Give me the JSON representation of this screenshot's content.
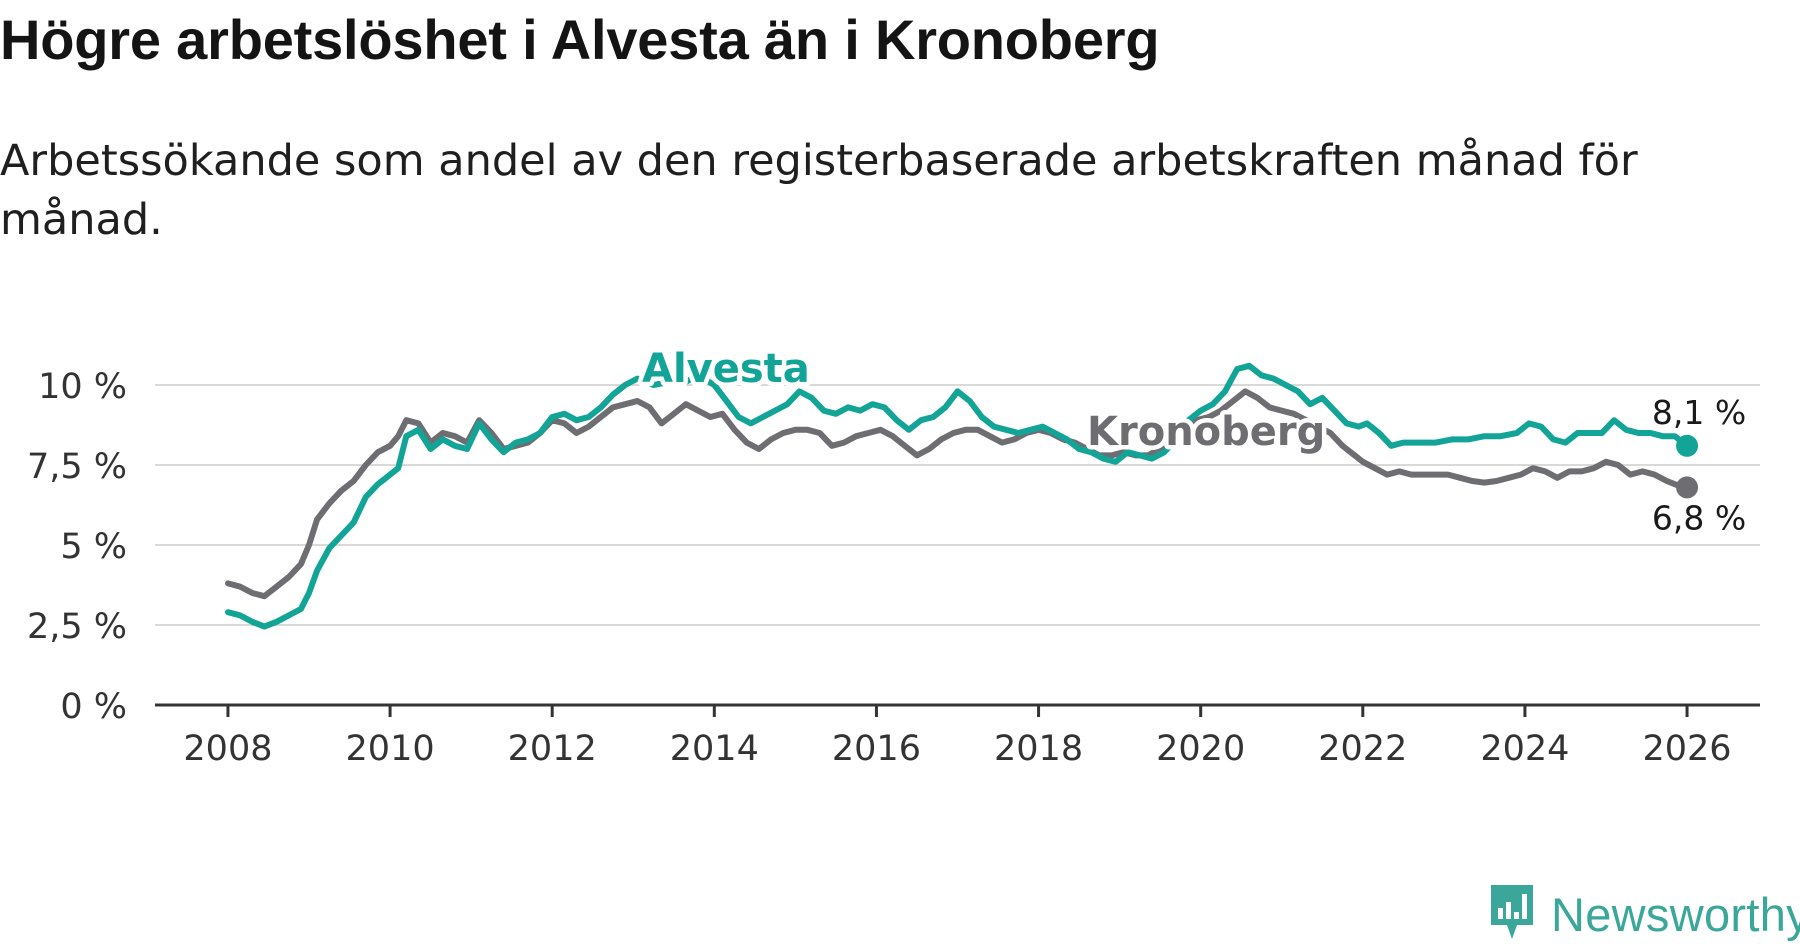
{
  "header": {
    "title": "Högre arbetslöshet i Alvesta än i Kronoberg",
    "subtitle": "Arbetssökande som andel av den registerbaserade arbetskraften månad för månad."
  },
  "brand": {
    "name": "Newsworthy",
    "icon": "newsworthy-logo-icon",
    "color": "#3aa79a"
  },
  "chart_data": {
    "type": "line",
    "title": "Högre arbetslöshet i Alvesta än i Kronoberg",
    "subtitle": "Arbetssökande som andel av den registerbaserade arbetskraften månad för månad.",
    "xlabel": "",
    "ylabel": "",
    "xlim": [
      2007.1,
      2026.9
    ],
    "ylim": [
      0,
      10
    ],
    "x_ticks": [
      2008,
      2010,
      2012,
      2014,
      2016,
      2018,
      2020,
      2022,
      2024,
      2026
    ],
    "x_tick_labels": [
      "2008",
      "2010",
      "2012",
      "2014",
      "2016",
      "2018",
      "2020",
      "2022",
      "2024",
      "2026"
    ],
    "y_ticks": [
      0,
      2.5,
      5,
      7.5,
      10
    ],
    "y_tick_labels": [
      "0 %",
      "2,5 %",
      "5 %",
      "7,5 %",
      "10 %"
    ],
    "grid": true,
    "series": [
      {
        "name": "Kronoberg",
        "label": "Kronoberg",
        "color": "#6e6d72",
        "end_label": "6,8 %",
        "end_value": 6.8,
        "points": [
          [
            2008.0,
            3.8
          ],
          [
            2008.15,
            3.7
          ],
          [
            2008.3,
            3.5
          ],
          [
            2008.45,
            3.4
          ],
          [
            2008.6,
            3.7
          ],
          [
            2008.75,
            4.0
          ],
          [
            2008.9,
            4.4
          ],
          [
            2009.0,
            5.0
          ],
          [
            2009.1,
            5.8
          ],
          [
            2009.25,
            6.3
          ],
          [
            2009.4,
            6.7
          ],
          [
            2009.55,
            7.0
          ],
          [
            2009.7,
            7.5
          ],
          [
            2009.85,
            7.9
          ],
          [
            2010.0,
            8.1
          ],
          [
            2010.1,
            8.4
          ],
          [
            2010.2,
            8.9
          ],
          [
            2010.35,
            8.8
          ],
          [
            2010.5,
            8.2
          ],
          [
            2010.65,
            8.5
          ],
          [
            2010.8,
            8.4
          ],
          [
            2010.95,
            8.2
          ],
          [
            2011.1,
            8.9
          ],
          [
            2011.25,
            8.5
          ],
          [
            2011.4,
            8.0
          ],
          [
            2011.55,
            8.1
          ],
          [
            2011.7,
            8.2
          ],
          [
            2011.85,
            8.5
          ],
          [
            2012.0,
            8.9
          ],
          [
            2012.15,
            8.8
          ],
          [
            2012.3,
            8.5
          ],
          [
            2012.45,
            8.7
          ],
          [
            2012.6,
            9.0
          ],
          [
            2012.75,
            9.3
          ],
          [
            2012.9,
            9.4
          ],
          [
            2013.05,
            9.5
          ],
          [
            2013.2,
            9.3
          ],
          [
            2013.35,
            8.8
          ],
          [
            2013.5,
            9.1
          ],
          [
            2013.65,
            9.4
          ],
          [
            2013.8,
            9.2
          ],
          [
            2013.95,
            9.0
          ],
          [
            2014.1,
            9.1
          ],
          [
            2014.25,
            8.6
          ],
          [
            2014.4,
            8.2
          ],
          [
            2014.55,
            8.0
          ],
          [
            2014.7,
            8.3
          ],
          [
            2014.85,
            8.5
          ],
          [
            2015.0,
            8.6
          ],
          [
            2015.15,
            8.6
          ],
          [
            2015.3,
            8.5
          ],
          [
            2015.45,
            8.1
          ],
          [
            2015.6,
            8.2
          ],
          [
            2015.75,
            8.4
          ],
          [
            2015.9,
            8.5
          ],
          [
            2016.05,
            8.6
          ],
          [
            2016.2,
            8.4
          ],
          [
            2016.35,
            8.1
          ],
          [
            2016.5,
            7.8
          ],
          [
            2016.65,
            8.0
          ],
          [
            2016.8,
            8.3
          ],
          [
            2016.95,
            8.5
          ],
          [
            2017.1,
            8.6
          ],
          [
            2017.25,
            8.6
          ],
          [
            2017.4,
            8.4
          ],
          [
            2017.55,
            8.2
          ],
          [
            2017.7,
            8.3
          ],
          [
            2017.85,
            8.5
          ],
          [
            2018.0,
            8.6
          ],
          [
            2018.15,
            8.5
          ],
          [
            2018.3,
            8.3
          ],
          [
            2018.45,
            8.2
          ],
          [
            2018.6,
            8.0
          ],
          [
            2018.75,
            7.8
          ],
          [
            2018.9,
            7.8
          ],
          [
            2019.05,
            7.9
          ],
          [
            2019.2,
            7.8
          ],
          [
            2019.35,
            7.8
          ],
          [
            2019.5,
            8.0
          ],
          [
            2019.65,
            8.3
          ],
          [
            2019.8,
            8.7
          ],
          [
            2019.95,
            8.9
          ],
          [
            2020.1,
            9.0
          ],
          [
            2020.25,
            9.2
          ],
          [
            2020.4,
            9.5
          ],
          [
            2020.55,
            9.8
          ],
          [
            2020.7,
            9.6
          ],
          [
            2020.85,
            9.3
          ],
          [
            2021.0,
            9.2
          ],
          [
            2021.15,
            9.1
          ],
          [
            2021.3,
            8.9
          ],
          [
            2021.45,
            8.7
          ],
          [
            2021.6,
            8.5
          ],
          [
            2021.75,
            8.1
          ],
          [
            2021.9,
            7.8
          ],
          [
            2022.0,
            7.6
          ],
          [
            2022.15,
            7.4
          ],
          [
            2022.3,
            7.2
          ],
          [
            2022.45,
            7.3
          ],
          [
            2022.6,
            7.2
          ],
          [
            2022.75,
            7.2
          ],
          [
            2022.9,
            7.2
          ],
          [
            2023.05,
            7.2
          ],
          [
            2023.2,
            7.1
          ],
          [
            2023.35,
            7.0
          ],
          [
            2023.5,
            6.95
          ],
          [
            2023.65,
            7.0
          ],
          [
            2023.8,
            7.1
          ],
          [
            2023.95,
            7.2
          ],
          [
            2024.1,
            7.4
          ],
          [
            2024.25,
            7.3
          ],
          [
            2024.4,
            7.1
          ],
          [
            2024.55,
            7.3
          ],
          [
            2024.7,
            7.3
          ],
          [
            2024.85,
            7.4
          ],
          [
            2025.0,
            7.6
          ],
          [
            2025.15,
            7.5
          ],
          [
            2025.3,
            7.2
          ],
          [
            2025.45,
            7.3
          ],
          [
            2025.6,
            7.2
          ],
          [
            2025.75,
            7.0
          ],
          [
            2025.9,
            6.85
          ],
          [
            2026.0,
            6.8
          ]
        ]
      },
      {
        "name": "Alvesta",
        "label": "Alvesta",
        "color": "#12a497",
        "end_label": "8,1 %",
        "end_value": 8.1,
        "points": [
          [
            2008.0,
            2.9
          ],
          [
            2008.15,
            2.8
          ],
          [
            2008.3,
            2.6
          ],
          [
            2008.45,
            2.45
          ],
          [
            2008.6,
            2.6
          ],
          [
            2008.75,
            2.8
          ],
          [
            2008.9,
            3.0
          ],
          [
            2009.0,
            3.5
          ],
          [
            2009.1,
            4.2
          ],
          [
            2009.25,
            4.9
          ],
          [
            2009.4,
            5.3
          ],
          [
            2009.55,
            5.7
          ],
          [
            2009.7,
            6.5
          ],
          [
            2009.85,
            6.9
          ],
          [
            2010.0,
            7.2
          ],
          [
            2010.1,
            7.4
          ],
          [
            2010.2,
            8.4
          ],
          [
            2010.35,
            8.6
          ],
          [
            2010.5,
            8.0
          ],
          [
            2010.65,
            8.3
          ],
          [
            2010.8,
            8.1
          ],
          [
            2010.95,
            8.0
          ],
          [
            2011.1,
            8.8
          ],
          [
            2011.25,
            8.3
          ],
          [
            2011.4,
            7.9
          ],
          [
            2011.55,
            8.2
          ],
          [
            2011.7,
            8.3
          ],
          [
            2011.85,
            8.5
          ],
          [
            2012.0,
            9.0
          ],
          [
            2012.15,
            9.1
          ],
          [
            2012.3,
            8.9
          ],
          [
            2012.45,
            9.0
          ],
          [
            2012.6,
            9.3
          ],
          [
            2012.75,
            9.7
          ],
          [
            2012.9,
            10.0
          ],
          [
            2013.05,
            10.2
          ],
          [
            2013.25,
            10.0
          ],
          [
            2013.45,
            10.1
          ],
          [
            2013.65,
            10.1
          ],
          [
            2013.8,
            10.3
          ],
          [
            2014.0,
            10.0
          ],
          [
            2014.15,
            9.5
          ],
          [
            2014.3,
            9.0
          ],
          [
            2014.45,
            8.8
          ],
          [
            2014.6,
            9.0
          ],
          [
            2014.75,
            9.2
          ],
          [
            2014.9,
            9.4
          ],
          [
            2015.05,
            9.8
          ],
          [
            2015.2,
            9.6
          ],
          [
            2015.35,
            9.2
          ],
          [
            2015.5,
            9.1
          ],
          [
            2015.65,
            9.3
          ],
          [
            2015.8,
            9.2
          ],
          [
            2015.95,
            9.4
          ],
          [
            2016.1,
            9.3
          ],
          [
            2016.25,
            8.9
          ],
          [
            2016.4,
            8.6
          ],
          [
            2016.55,
            8.9
          ],
          [
            2016.7,
            9.0
          ],
          [
            2016.85,
            9.3
          ],
          [
            2017.0,
            9.8
          ],
          [
            2017.15,
            9.5
          ],
          [
            2017.3,
            9.0
          ],
          [
            2017.45,
            8.7
          ],
          [
            2017.6,
            8.6
          ],
          [
            2017.75,
            8.5
          ],
          [
            2017.9,
            8.6
          ],
          [
            2018.05,
            8.7
          ],
          [
            2018.2,
            8.5
          ],
          [
            2018.35,
            8.3
          ],
          [
            2018.5,
            8.0
          ],
          [
            2018.65,
            7.9
          ],
          [
            2018.8,
            7.7
          ],
          [
            2018.95,
            7.6
          ],
          [
            2019.1,
            7.9
          ],
          [
            2019.25,
            7.8
          ],
          [
            2019.4,
            7.7
          ],
          [
            2019.55,
            7.9
          ],
          [
            2019.7,
            8.3
          ],
          [
            2019.85,
            8.9
          ],
          [
            2020.0,
            9.2
          ],
          [
            2020.15,
            9.4
          ],
          [
            2020.3,
            9.8
          ],
          [
            2020.45,
            10.5
          ],
          [
            2020.6,
            10.6
          ],
          [
            2020.75,
            10.3
          ],
          [
            2020.9,
            10.2
          ],
          [
            2021.05,
            10.0
          ],
          [
            2021.2,
            9.8
          ],
          [
            2021.35,
            9.4
          ],
          [
            2021.5,
            9.6
          ],
          [
            2021.65,
            9.2
          ],
          [
            2021.8,
            8.8
          ],
          [
            2021.95,
            8.7
          ],
          [
            2022.05,
            8.8
          ],
          [
            2022.2,
            8.5
          ],
          [
            2022.35,
            8.1
          ],
          [
            2022.5,
            8.2
          ],
          [
            2022.7,
            8.2
          ],
          [
            2022.9,
            8.2
          ],
          [
            2023.1,
            8.3
          ],
          [
            2023.3,
            8.3
          ],
          [
            2023.5,
            8.4
          ],
          [
            2023.7,
            8.4
          ],
          [
            2023.9,
            8.5
          ],
          [
            2024.05,
            8.8
          ],
          [
            2024.2,
            8.7
          ],
          [
            2024.35,
            8.3
          ],
          [
            2024.5,
            8.2
          ],
          [
            2024.65,
            8.5
          ],
          [
            2024.8,
            8.5
          ],
          [
            2024.95,
            8.5
          ],
          [
            2025.1,
            8.9
          ],
          [
            2025.25,
            8.6
          ],
          [
            2025.4,
            8.5
          ],
          [
            2025.55,
            8.5
          ],
          [
            2025.7,
            8.4
          ],
          [
            2025.85,
            8.4
          ],
          [
            2026.0,
            8.1
          ]
        ]
      }
    ]
  }
}
